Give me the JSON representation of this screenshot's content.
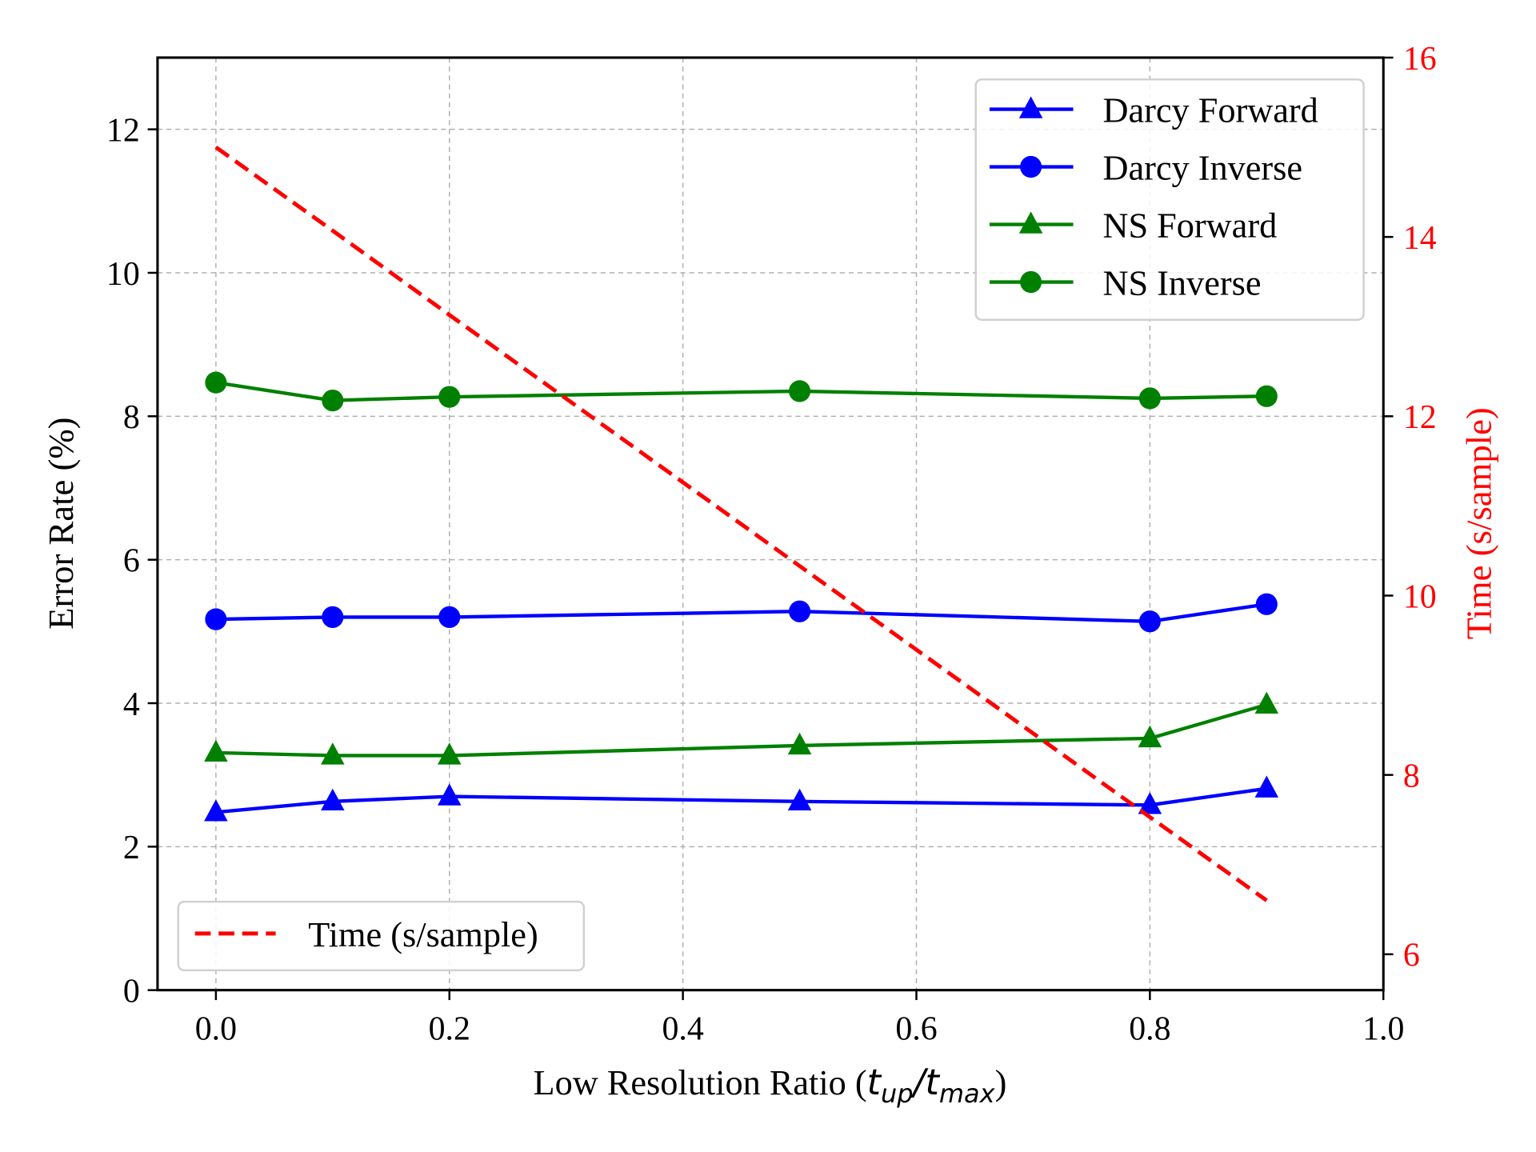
{
  "chart_data": {
    "type": "line",
    "xlabel": "Low Resolution Ratio (t_up/t_max)",
    "ylabel": "Error Rate (%)",
    "y2label": "Time (s/sample)",
    "xlim": [
      -0.05,
      1.0
    ],
    "ylim": [
      0,
      13
    ],
    "y2lim": [
      5.6,
      16
    ],
    "xticks": [
      "0.0",
      "0.2",
      "0.4",
      "0.6",
      "0.8",
      "1.0"
    ],
    "yticks": [
      "0",
      "2",
      "4",
      "6",
      "8",
      "10",
      "12"
    ],
    "y2ticks": [
      "6",
      "8",
      "10",
      "12",
      "14",
      "16"
    ],
    "grid": true,
    "x": [
      0.0,
      0.1,
      0.2,
      0.5,
      0.8,
      0.9
    ],
    "series": [
      {
        "name": "Darcy Forward",
        "axis": "left",
        "color": "#0000ff",
        "marker": "triangle",
        "values": [
          2.48,
          2.63,
          2.7,
          2.63,
          2.58,
          2.81
        ]
      },
      {
        "name": "Darcy Inverse",
        "axis": "left",
        "color": "#0000ff",
        "marker": "circle",
        "values": [
          5.17,
          5.2,
          5.2,
          5.28,
          5.14,
          5.38
        ]
      },
      {
        "name": "NS Forward",
        "axis": "left",
        "color": "#008000",
        "marker": "triangle",
        "values": [
          3.31,
          3.27,
          3.27,
          3.41,
          3.51,
          3.98
        ]
      },
      {
        "name": "NS Inverse",
        "axis": "left",
        "color": "#008000",
        "marker": "circle",
        "values": [
          8.47,
          8.22,
          8.27,
          8.35,
          8.25,
          8.28
        ]
      },
      {
        "name": "Time (s/sample)",
        "axis": "right",
        "color": "#ff0000",
        "marker": "none",
        "dashed": true,
        "values": [
          15.0,
          14.07,
          13.13,
          10.33,
          7.53,
          6.6
        ]
      }
    ],
    "legend_main": "top-right",
    "legend_time": "bottom-left"
  }
}
